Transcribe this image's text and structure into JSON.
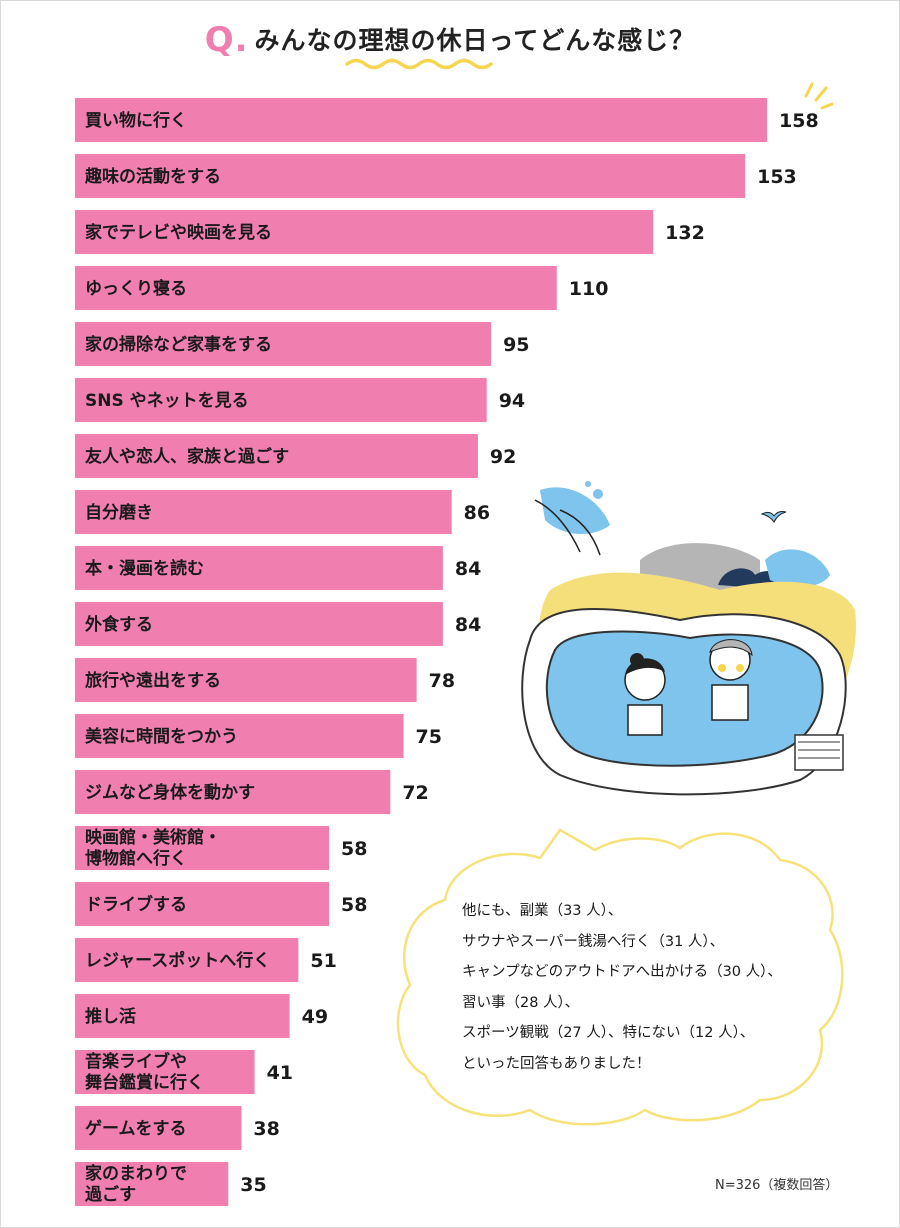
{
  "title": {
    "q_mark": "Q.",
    "text": "みんなの理想の休日ってどんな感じ？"
  },
  "chart_data": {
    "type": "bar",
    "orientation": "horizontal",
    "categories": [
      [
        "買い物に行く"
      ],
      [
        "趣味の活動をする"
      ],
      [
        "家でテレビや映画を見る"
      ],
      [
        "ゆっくり寝る"
      ],
      [
        "家の掃除など家事をする"
      ],
      [
        "SNS やネットを見る"
      ],
      [
        "友人や恋人、家族と過ごす"
      ],
      [
        "自分磨き"
      ],
      [
        "本・漫画を読む"
      ],
      [
        "外食する"
      ],
      [
        "旅行や遠出をする"
      ],
      [
        "美容に時間をつかう"
      ],
      [
        "ジムなど身体を動かす"
      ],
      [
        "映画館・美術館・",
        "博物館へ行く"
      ],
      [
        "ドライブする"
      ],
      [
        "レジャースポットへ行く"
      ],
      [
        "推し活"
      ],
      [
        "音楽ライブや",
        "舞台鑑賞に行く"
      ],
      [
        "ゲームをする"
      ],
      [
        "家のまわりで",
        "過ごす"
      ]
    ],
    "values": [
      158,
      153,
      132,
      110,
      95,
      94,
      92,
      86,
      84,
      84,
      78,
      75,
      72,
      58,
      58,
      51,
      49,
      41,
      38,
      35
    ],
    "bar_color": "#f07fb0",
    "xlim": [
      0,
      158
    ]
  },
  "bubble": {
    "lines": [
      "他にも、副業（33 人）、",
      "サウナやスーパー銭湯へ行く（31 人）、",
      "キャンプなどのアウトドアへ出かける（30 人）、",
      "習い事（28 人）、",
      "スポーツ観戦（27 人）、特にない（12 人）、",
      "といった回答もありました！"
    ]
  },
  "note": "N=326（複数回答）",
  "colors": {
    "accent_pink": "#f07fb0",
    "wave_yellow": "#f5d64e",
    "bubble_yellow": "#f7e27a",
    "water_blue": "#7fc4ec"
  }
}
